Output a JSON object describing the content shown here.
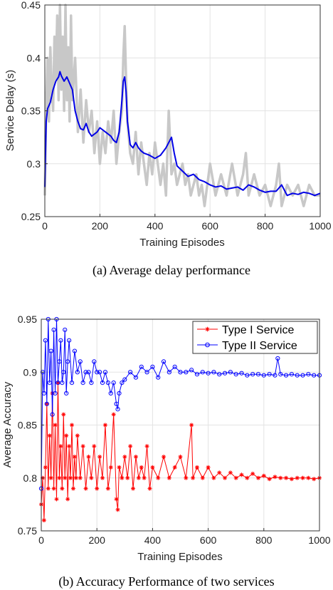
{
  "chart_data": [
    {
      "type": "line",
      "caption": "(a)  Average delay performance",
      "xlabel": "Training Episodes",
      "ylabel": "Service Delay (s)",
      "xlim": [
        0,
        1000
      ],
      "ylim": [
        0.25,
        0.45
      ],
      "xticks": [
        "0",
        "200",
        "400",
        "600",
        "800",
        "1000"
      ],
      "yticks": [
        "0.25",
        "0.3",
        "0.35",
        "0.4",
        "0.45"
      ],
      "grid": true,
      "series": [
        {
          "role": "raw",
          "color": "#c8c8c8",
          "x": [
            0,
            5,
            10,
            15,
            20,
            25,
            30,
            35,
            40,
            45,
            50,
            55,
            60,
            65,
            70,
            75,
            80,
            85,
            90,
            95,
            100,
            110,
            120,
            130,
            140,
            150,
            160,
            170,
            180,
            190,
            200,
            210,
            220,
            230,
            240,
            250,
            260,
            270,
            280,
            285,
            290,
            295,
            300,
            310,
            320,
            330,
            340,
            350,
            360,
            370,
            380,
            390,
            400,
            410,
            420,
            430,
            440,
            450,
            460,
            470,
            480,
            490,
            500,
            510,
            520,
            530,
            540,
            550,
            560,
            570,
            580,
            590,
            600,
            620,
            640,
            660,
            680,
            700,
            720,
            730,
            740,
            760,
            780,
            800,
            820,
            840,
            850,
            860,
            880,
            900,
            920,
            940,
            960,
            980,
            1000
          ],
          "values": [
            0.27,
            0.36,
            0.4,
            0.34,
            0.41,
            0.37,
            0.35,
            0.42,
            0.38,
            0.44,
            0.36,
            0.45,
            0.37,
            0.42,
            0.35,
            0.45,
            0.36,
            0.41,
            0.34,
            0.44,
            0.36,
            0.4,
            0.33,
            0.37,
            0.32,
            0.36,
            0.33,
            0.35,
            0.31,
            0.34,
            0.3,
            0.33,
            0.31,
            0.34,
            0.32,
            0.35,
            0.3,
            0.33,
            0.35,
            0.4,
            0.43,
            0.38,
            0.34,
            0.31,
            0.3,
            0.33,
            0.29,
            0.32,
            0.3,
            0.28,
            0.31,
            0.29,
            0.32,
            0.3,
            0.28,
            0.3,
            0.27,
            0.35,
            0.29,
            0.3,
            0.28,
            0.29,
            0.3,
            0.28,
            0.29,
            0.27,
            0.28,
            0.29,
            0.27,
            0.28,
            0.26,
            0.28,
            0.3,
            0.27,
            0.29,
            0.27,
            0.3,
            0.27,
            0.29,
            0.31,
            0.27,
            0.29,
            0.27,
            0.28,
            0.26,
            0.28,
            0.3,
            0.26,
            0.28,
            0.27,
            0.28,
            0.26,
            0.28,
            0.27,
            0.27
          ]
        },
        {
          "role": "average",
          "color": "#0000e6",
          "x": [
            0,
            5,
            10,
            20,
            30,
            40,
            50,
            55,
            60,
            70,
            80,
            90,
            100,
            110,
            120,
            130,
            140,
            150,
            160,
            170,
            180,
            190,
            200,
            220,
            240,
            250,
            260,
            270,
            280,
            285,
            290,
            295,
            300,
            310,
            320,
            330,
            340,
            350,
            360,
            380,
            400,
            420,
            440,
            450,
            460,
            470,
            480,
            500,
            520,
            540,
            560,
            580,
            600,
            620,
            640,
            660,
            680,
            700,
            720,
            740,
            760,
            780,
            800,
            820,
            840,
            860,
            880,
            900,
            920,
            940,
            960,
            980,
            1000
          ],
          "values": [
            0.278,
            0.34,
            0.352,
            0.358,
            0.37,
            0.378,
            0.382,
            0.387,
            0.383,
            0.378,
            0.382,
            0.376,
            0.37,
            0.35,
            0.34,
            0.333,
            0.332,
            0.338,
            0.33,
            0.326,
            0.328,
            0.33,
            0.334,
            0.33,
            0.326,
            0.322,
            0.32,
            0.33,
            0.36,
            0.378,
            0.382,
            0.368,
            0.34,
            0.318,
            0.315,
            0.32,
            0.315,
            0.312,
            0.31,
            0.308,
            0.305,
            0.308,
            0.315,
            0.32,
            0.325,
            0.31,
            0.298,
            0.293,
            0.288,
            0.29,
            0.285,
            0.283,
            0.28,
            0.278,
            0.279,
            0.276,
            0.277,
            0.278,
            0.275,
            0.28,
            0.278,
            0.275,
            0.273,
            0.274,
            0.274,
            0.28,
            0.27,
            0.272,
            0.271,
            0.273,
            0.272,
            0.27,
            0.272
          ]
        }
      ]
    },
    {
      "type": "line",
      "caption": "(b)  Accuracy Performance of two services",
      "xlabel": "Training Episodes",
      "ylabel": "Average Accuracy",
      "xlim": [
        0,
        1000
      ],
      "ylim": [
        0.75,
        0.95
      ],
      "xticks": [
        "0",
        "200",
        "400",
        "600",
        "800",
        "1000"
      ],
      "yticks": [
        "0.75",
        "0.8",
        "0.85",
        "0.9",
        "0.95"
      ],
      "grid": true,
      "legend_position": "top-right",
      "series": [
        {
          "name": "Type I Service",
          "color": "#ff0000",
          "marker": "star",
          "x": [
            0,
            5,
            10,
            15,
            20,
            25,
            30,
            35,
            40,
            45,
            50,
            55,
            60,
            65,
            70,
            75,
            80,
            85,
            90,
            95,
            100,
            105,
            110,
            115,
            120,
            125,
            130,
            140,
            150,
            160,
            170,
            180,
            190,
            200,
            210,
            220,
            230,
            240,
            250,
            260,
            270,
            275,
            280,
            290,
            300,
            310,
            320,
            330,
            340,
            350,
            360,
            370,
            380,
            390,
            400,
            420,
            440,
            460,
            480,
            500,
            520,
            540,
            545,
            560,
            580,
            600,
            620,
            640,
            660,
            680,
            700,
            720,
            740,
            760,
            780,
            800,
            820,
            840,
            860,
            880,
            900,
            920,
            940,
            960,
            980,
            1000
          ],
          "values": [
            0.775,
            0.8,
            0.76,
            0.81,
            0.87,
            0.79,
            0.84,
            0.8,
            0.88,
            0.79,
            0.85,
            0.78,
            0.89,
            0.8,
            0.83,
            0.79,
            0.86,
            0.8,
            0.84,
            0.78,
            0.83,
            0.8,
            0.85,
            0.79,
            0.82,
            0.8,
            0.84,
            0.8,
            0.83,
            0.79,
            0.82,
            0.8,
            0.83,
            0.79,
            0.82,
            0.8,
            0.85,
            0.79,
            0.81,
            0.86,
            0.78,
            0.77,
            0.81,
            0.8,
            0.82,
            0.8,
            0.83,
            0.79,
            0.82,
            0.8,
            0.81,
            0.8,
            0.83,
            0.79,
            0.81,
            0.8,
            0.82,
            0.8,
            0.81,
            0.82,
            0.8,
            0.85,
            0.8,
            0.81,
            0.8,
            0.81,
            0.8,
            0.805,
            0.8,
            0.805,
            0.8,
            0.803,
            0.8,
            0.804,
            0.8,
            0.802,
            0.799,
            0.801,
            0.8,
            0.8,
            0.799,
            0.8,
            0.8,
            0.8,
            0.799,
            0.8
          ]
        },
        {
          "name": "Type II Service",
          "color": "#0000ff",
          "marker": "circle",
          "x": [
            0,
            5,
            10,
            15,
            20,
            25,
            30,
            35,
            40,
            45,
            50,
            55,
            60,
            65,
            70,
            75,
            80,
            85,
            90,
            95,
            100,
            110,
            120,
            130,
            140,
            150,
            160,
            170,
            180,
            190,
            200,
            210,
            220,
            230,
            240,
            250,
            260,
            270,
            275,
            280,
            290,
            300,
            320,
            340,
            360,
            380,
            400,
            420,
            440,
            460,
            480,
            500,
            520,
            540,
            560,
            580,
            600,
            620,
            640,
            660,
            680,
            700,
            720,
            740,
            760,
            780,
            800,
            820,
            840,
            850,
            860,
            880,
            900,
            920,
            940,
            960,
            980,
            1000
          ],
          "values": [
            0.79,
            0.9,
            0.88,
            0.93,
            0.87,
            0.95,
            0.89,
            0.92,
            0.86,
            0.94,
            0.88,
            0.95,
            0.89,
            0.91,
            0.93,
            0.89,
            0.9,
            0.94,
            0.88,
            0.91,
            0.93,
            0.89,
            0.92,
            0.9,
            0.91,
            0.89,
            0.9,
            0.9,
            0.89,
            0.91,
            0.9,
            0.9,
            0.89,
            0.9,
            0.89,
            0.88,
            0.89,
            0.87,
            0.865,
            0.88,
            0.89,
            0.893,
            0.9,
            0.895,
            0.905,
            0.9,
            0.905,
            0.895,
            0.91,
            0.9,
            0.905,
            0.9,
            0.9,
            0.902,
            0.898,
            0.9,
            0.899,
            0.9,
            0.898,
            0.899,
            0.9,
            0.898,
            0.899,
            0.897,
            0.898,
            0.898,
            0.897,
            0.898,
            0.897,
            0.913,
            0.898,
            0.897,
            0.898,
            0.897,
            0.897,
            0.898,
            0.897,
            0.897
          ]
        }
      ]
    }
  ]
}
